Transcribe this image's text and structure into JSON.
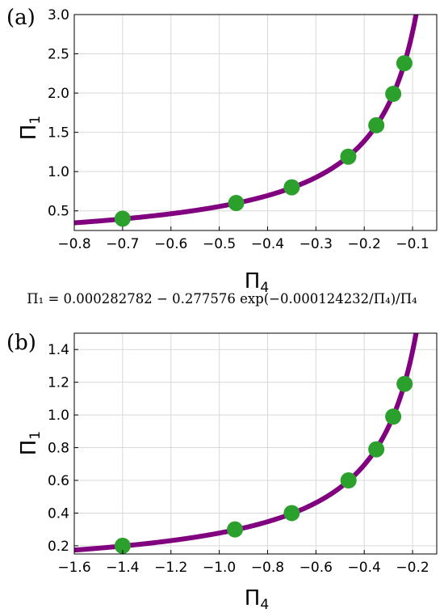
{
  "equation": "Π₁ = 0.000282782 − 0.277576 exp(−0.000124232/Π₄)/Π₄",
  "colors": {
    "curve": "#800080",
    "points": "#2ca02c",
    "grid": "#d9d9d9"
  },
  "chart_data": [
    {
      "type": "scatter",
      "panel_label": "(a)",
      "xlabel": {
        "main": "Π",
        "sub": "4"
      },
      "ylabel": {
        "main": "Π",
        "sub": "1"
      },
      "xlim": [
        -0.8,
        -0.05
      ],
      "ylim": [
        0.25,
        3.0
      ],
      "x_ticks": [
        -0.8,
        -0.7,
        -0.6,
        -0.5,
        -0.4,
        -0.3,
        -0.2,
        -0.1
      ],
      "x_tick_labels": [
        "−0.8",
        "−0.7",
        "−0.6",
        "−0.5",
        "−0.4",
        "−0.3",
        "−0.2",
        "−0.1"
      ],
      "y_ticks": [
        0.5,
        1.0,
        1.5,
        2.0,
        2.5,
        3.0
      ],
      "y_tick_labels": [
        "0.5",
        "1.0",
        "1.5",
        "2.0",
        "2.5",
        "3.0"
      ],
      "grid": true,
      "points": {
        "x": [
          -0.7,
          -0.465,
          -0.35,
          -0.233,
          -0.175,
          -0.14,
          -0.117
        ],
        "y": [
          0.4,
          0.6,
          0.8,
          1.19,
          1.59,
          1.99,
          2.38
        ]
      }
    },
    {
      "type": "scatter",
      "panel_label": "(b)",
      "xlabel": {
        "main": "Π",
        "sub": "4"
      },
      "ylabel": {
        "main": "Π",
        "sub": "1"
      },
      "xlim": [
        -1.6,
        -0.1
      ],
      "ylim": [
        0.15,
        1.5
      ],
      "x_ticks": [
        -1.6,
        -1.4,
        -1.2,
        -1.0,
        -0.8,
        -0.6,
        -0.4,
        -0.2
      ],
      "x_tick_labels": [
        "−1.6",
        "−1.4",
        "−1.2",
        "−1.0",
        "−0.8",
        "−0.6",
        "−0.4",
        "−0.2"
      ],
      "y_ticks": [
        0.2,
        0.4,
        0.6,
        0.8,
        1.0,
        1.2,
        1.4
      ],
      "y_tick_labels": [
        "0.2",
        "0.4",
        "0.6",
        "0.8",
        "1.0",
        "1.2",
        "1.4"
      ],
      "grid": true,
      "points": {
        "x": [
          -1.4,
          -0.935,
          -0.7,
          -0.465,
          -0.35,
          -0.28,
          -0.233
        ],
        "y": [
          0.2,
          0.3,
          0.4,
          0.6,
          0.79,
          0.99,
          1.19
        ]
      }
    }
  ]
}
